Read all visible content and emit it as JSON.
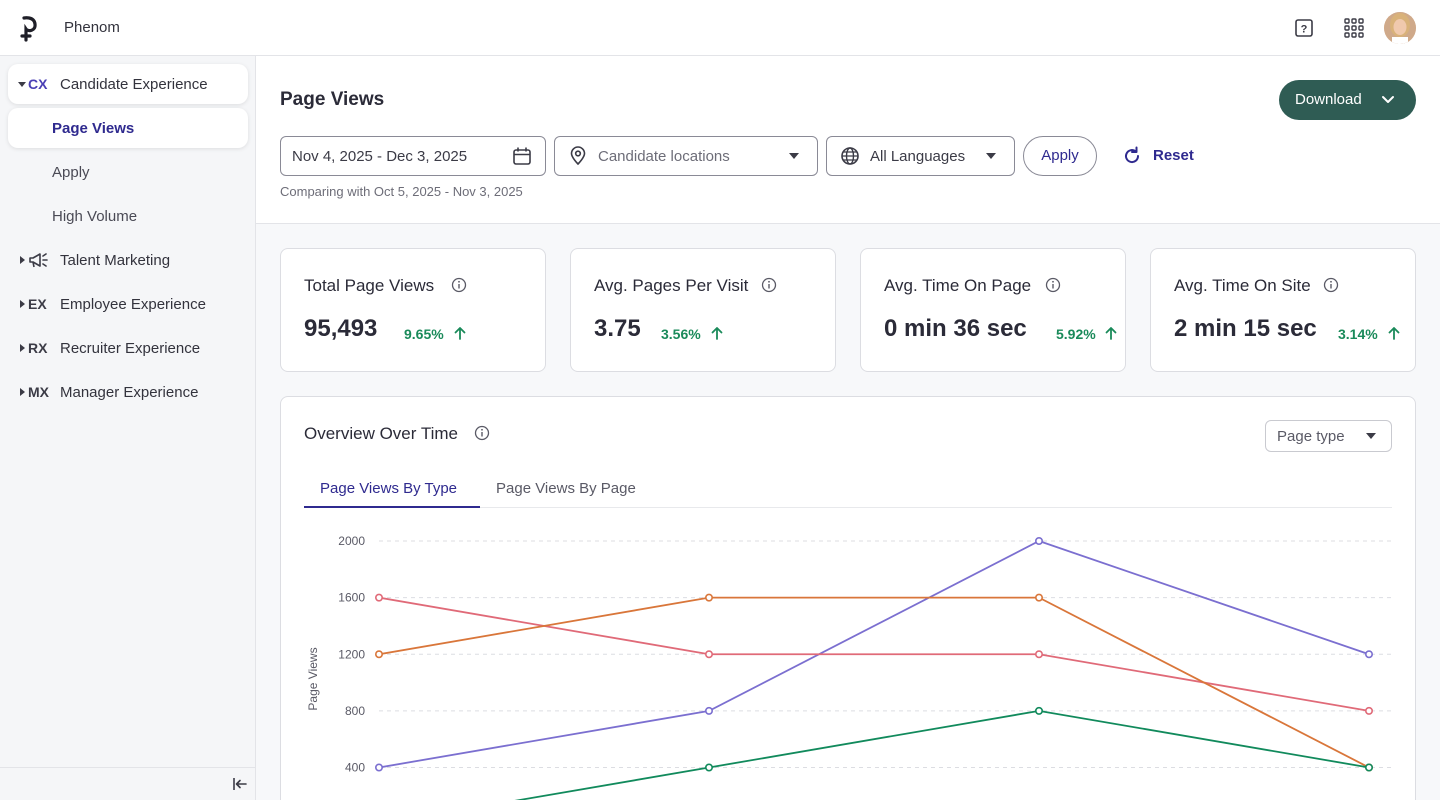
{
  "app": {
    "brand": "Phenom"
  },
  "topbar": {
    "icons": [
      "help-icon",
      "apps-grid-icon",
      "avatar"
    ]
  },
  "sidebar": {
    "groups": [
      {
        "code": "CX",
        "label": "Candidate Experience",
        "expanded": true,
        "items": [
          {
            "label": "Page Views",
            "active": true
          },
          {
            "label": "Apply"
          },
          {
            "label": "High Volume"
          }
        ]
      },
      {
        "code": "",
        "icon": "megaphone-icon",
        "label": "Talent Marketing"
      },
      {
        "code": "EX",
        "label": "Employee Experience"
      },
      {
        "code": "RX",
        "label": "Recruiter Experience"
      },
      {
        "code": "MX",
        "label": "Manager Experience"
      }
    ]
  },
  "header": {
    "title": "Page Views",
    "download_label": "Download",
    "date_range": "Nov 4, 2025 - Dec 3, 2025",
    "locations_placeholder": "Candidate locations",
    "languages_value": "All Languages",
    "apply_label": "Apply",
    "reset_label": "Reset",
    "comparing": "Comparing with Oct 5, 2025 - Nov 3, 2025"
  },
  "kpis": [
    {
      "title": "Total Page Views",
      "value": "95,493",
      "change": "9.65%"
    },
    {
      "title": "Avg. Pages Per Visit",
      "value": "3.75",
      "change": "3.56%"
    },
    {
      "title": "Avg. Time On Page",
      "value": "0 min 36 sec",
      "change": "5.92%"
    },
    {
      "title": "Avg. Time On Site",
      "value": "2 min 15 sec",
      "change": "3.14%"
    }
  ],
  "overview": {
    "title": "Overview Over Time",
    "page_type_label": "Page type",
    "tabs": [
      "Page Views By Type",
      "Page Views By Page"
    ],
    "active_tab": 0
  },
  "chart_data": {
    "type": "line",
    "ylabel": "Page Views",
    "yticks": [
      400,
      800,
      1200,
      1600,
      2000
    ],
    "x": [
      1,
      2,
      3,
      4
    ],
    "series": [
      {
        "color": "#7b6fd0",
        "values": [
          400,
          800,
          2000,
          1200
        ]
      },
      {
        "color": "#e06a78",
        "values": [
          1600,
          1200,
          1200,
          800
        ]
      },
      {
        "color": "#d9763a",
        "values": [
          1200,
          1600,
          1600,
          400
        ]
      },
      {
        "color": "#118a5c",
        "values": [
          0,
          400,
          800,
          400
        ]
      }
    ]
  }
}
